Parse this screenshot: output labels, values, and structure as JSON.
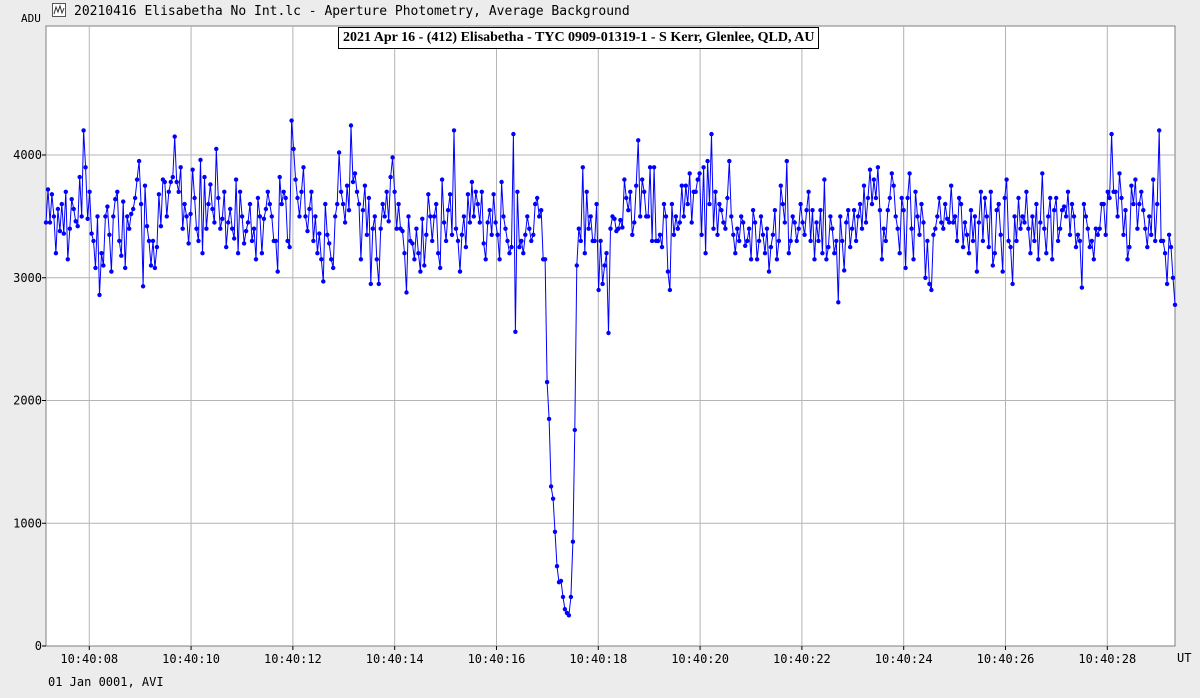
{
  "window": {
    "title": "20210416 Elisabetha No Int.lc - Aperture Photometry, Average Background",
    "icon": "lightcurve-chart-icon"
  },
  "footer": {
    "text": "01 Jan 0001, AVI"
  },
  "colors": {
    "series": "#0000ff",
    "grid": "#b4b4b4",
    "background": "#ffffff",
    "window": "#ececec"
  },
  "chart_data": {
    "type": "line",
    "title": "2021 Apr 16 - (412) Elisabetha - TYC 0909-01319-1 - S Kerr, Glenlee, QLD, AU",
    "ylabel": "ADU",
    "xlabel": "UT",
    "ylim": [
      0,
      4000
    ],
    "yticks": [
      0,
      1000,
      2000,
      3000,
      4000
    ],
    "xlim": [
      "10:40:07.15",
      "10:40:29.33"
    ],
    "xticks": [
      "10:40:08",
      "10:40:10",
      "10:40:12",
      "10:40:14",
      "10:40:16",
      "10:40:18",
      "10:40:20",
      "10:40:22",
      "10:40:24",
      "10:40:26",
      "10:40:28"
    ],
    "grid": true,
    "markers": true,
    "series": [
      {
        "x_start": "10:40:07.15",
        "x_end": "10:40:29.33",
        "values": [
          3450,
          3720,
          3450,
          3680,
          3500,
          3200,
          3560,
          3380,
          3600,
          3360,
          3700,
          3150,
          3400,
          3640,
          3560,
          3460,
          3420,
          3820,
          3500,
          4200,
          3900,
          3480,
          3700,
          3360,
          3300,
          3080,
          3500,
          2860,
          3200,
          3100,
          3500,
          3580,
          3350,
          3050,
          3500,
          3640,
          3700,
          3300,
          3180,
          3620,
          3080,
          3500,
          3400,
          3520,
          3560,
          3650,
          3800,
          3950,
          3600,
          2930,
          3750,
          3420,
          3300,
          3100,
          3300,
          3080,
          3250,
          3680,
          3420,
          3800,
          3780,
          3500,
          3700,
          3780,
          3820,
          4150,
          3780,
          3700,
          3900,
          3400,
          3600,
          3500,
          3280,
          3520,
          3880,
          3650,
          3400,
          3300,
          3960,
          3200,
          3820,
          3400,
          3600,
          3760,
          3560,
          3450,
          4050,
          3650,
          3400,
          3480,
          3700,
          3250,
          3450,
          3560,
          3400,
          3320,
          3800,
          3200,
          3700,
          3500,
          3280,
          3380,
          3450,
          3600,
          3300,
          3400,
          3150,
          3650,
          3500,
          3200,
          3480,
          3560,
          3700,
          3600,
          3500,
          3300,
          3300,
          3050,
          3820,
          3600,
          3700,
          3650,
          3300,
          3250,
          4280,
          4050,
          3800,
          3650,
          3500,
          3700,
          3900,
          3500,
          3380,
          3560,
          3700,
          3300,
          3500,
          3200,
          3360,
          3150,
          2970,
          3600,
          3350,
          3280,
          3150,
          3080,
          3500,
          3600,
          4020,
          3700,
          3600,
          3450,
          3750,
          3550,
          4240,
          3780,
          3850,
          3700,
          3600,
          3150,
          3550,
          3750,
          3350,
          3650,
          2950,
          3400,
          3500,
          3150,
          2950,
          3400,
          3600,
          3500,
          3700,
          3460,
          3820,
          3980,
          3700,
          3400,
          3600,
          3400,
          3380,
          3200,
          2880,
          3500,
          3300,
          3280,
          3150,
          3400,
          3200,
          3050,
          3480,
          3100,
          3350,
          3680,
          3500,
          3300,
          3500,
          3600,
          3200,
          3080,
          3800,
          3450,
          3300,
          3550,
          3680,
          3350,
          4200,
          3400,
          3300,
          3050,
          3350,
          3500,
          3250,
          3680,
          3450,
          3780,
          3500,
          3700,
          3600,
          3450,
          3700,
          3280,
          3150,
          3450,
          3550,
          3350,
          3680,
          3450,
          3350,
          3150,
          3780,
          3500,
          3400,
          3300,
          3200,
          3250,
          4170,
          2560,
          3700,
          3250,
          3300,
          3200,
          3350,
          3500,
          3400,
          3300,
          3350,
          3600,
          3650,
          3500,
          3550,
          3150,
          3150,
          2150,
          1850,
          1300,
          1200,
          930,
          650,
          520,
          530,
          400,
          300,
          270,
          250,
          400,
          850,
          1760,
          3100,
          3400,
          3300,
          3900,
          3200,
          3700,
          3400,
          3500,
          3300,
          3300,
          3600,
          2900,
          3300,
          2950,
          3100,
          3200,
          2550,
          3400,
          3500,
          3480,
          3380,
          3400,
          3470,
          3410,
          3800,
          3650,
          3550,
          3700,
          3350,
          3450,
          3750,
          4120,
          3500,
          3800,
          3700,
          3500,
          3500,
          3900,
          3300,
          3900,
          3300,
          3300,
          3350,
          3250,
          3600,
          3500,
          3050,
          2900,
          3600,
          3350,
          3500,
          3400,
          3450,
          3750,
          3500,
          3750,
          3600,
          3850,
          3450,
          3700,
          3700,
          3800,
          3850,
          3350,
          3900,
          3200,
          3950,
          3600,
          4170,
          3400,
          3700,
          3350,
          3600,
          3550,
          3450,
          3400,
          3650,
          3950,
          3500,
          3350,
          3200,
          3400,
          3300,
          3500,
          3450,
          3260,
          3300,
          3400,
          3150,
          3550,
          3450,
          3150,
          3300,
          3500,
          3350,
          3200,
          3400,
          3050,
          3250,
          3350,
          3550,
          3150,
          3300,
          3750,
          3600,
          3450,
          3950,
          3200,
          3300,
          3500,
          3450,
          3300,
          3400,
          3600,
          3450,
          3350,
          3550,
          3700,
          3300,
          3550,
          3150,
          3450,
          3300,
          3550,
          3200,
          3800,
          3150,
          3250,
          3500,
          3400,
          3200,
          3300,
          2800,
          3500,
          3300,
          3060,
          3450,
          3550,
          3250,
          3400,
          3550,
          3300,
          3500,
          3600,
          3400,
          3750,
          3450,
          3650,
          3880,
          3600,
          3800,
          3650,
          3900,
          3550,
          3150,
          3400,
          3300,
          3550,
          3650,
          3850,
          3750,
          3500,
          3400,
          3200,
          3650,
          3550,
          3080,
          3650,
          3850,
          3400,
          3150,
          3700,
          3500,
          3350,
          3600,
          3450,
          3000,
          3300,
          2950,
          2900,
          3350,
          3400,
          3500,
          3650,
          3450,
          3400,
          3600,
          3480,
          3450,
          3750,
          3450,
          3500,
          3300,
          3650,
          3600,
          3250,
          3450,
          3350,
          3200,
          3550,
          3300,
          3500,
          3050,
          3450,
          3700,
          3300,
          3650,
          3500,
          3250,
          3700,
          3100,
          3200,
          3550,
          3600,
          3350,
          3050,
          3650,
          3800,
          3300,
          3250,
          2950,
          3500,
          3300,
          3650,
          3400,
          3500,
          3450,
          3700,
          3400,
          3200,
          3500,
          3300,
          3600,
          3150,
          3450,
          3850,
          3400,
          3200,
          3500,
          3650,
          3150,
          3550,
          3650,
          3300,
          3400,
          3550,
          3580,
          3500,
          3700,
          3350,
          3600,
          3500,
          3250,
          3350,
          3300,
          2920,
          3600,
          3500,
          3400,
          3250,
          3300,
          3150,
          3400,
          3350,
          3400,
          3600,
          3600,
          3350,
          3700,
          3650,
          4170,
          3700,
          3700,
          3500,
          3850,
          3650,
          3350,
          3550,
          3150,
          3250,
          3750,
          3600,
          3800,
          3400,
          3600,
          3700,
          3550,
          3400,
          3250,
          3500,
          3350,
          3800,
          3300,
          3600,
          4200,
          3300,
          3300,
          3200,
          2950,
          3350,
          3250,
          3000,
          2780
        ]
      }
    ]
  }
}
